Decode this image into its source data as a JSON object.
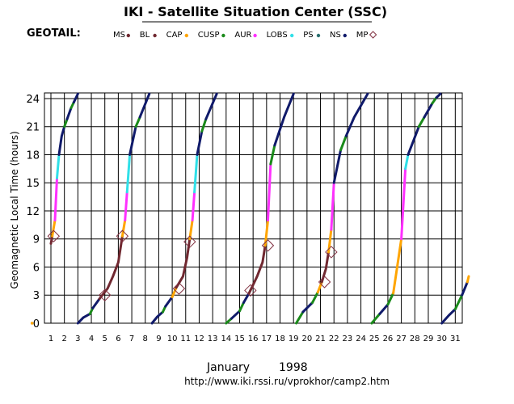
{
  "header": {
    "title": "IKI - Satellite Situation Center (SSC)",
    "spacecraft": "GEOTAIL:"
  },
  "legend": [
    {
      "label": "MS",
      "color": "#702830",
      "symbol": "dot"
    },
    {
      "label": "BL",
      "color": "#702830",
      "symbol": "dot"
    },
    {
      "label": "CAP",
      "color": "#ffa500",
      "symbol": "dot"
    },
    {
      "label": "CUSP",
      "color": "#1a8a1a",
      "symbol": "dot"
    },
    {
      "label": "AUR",
      "color": "#ff30ff",
      "symbol": "dot"
    },
    {
      "label": "LOBS",
      "color": "#30e0e8",
      "symbol": "dot"
    },
    {
      "label": "PS",
      "color": "#2a7070",
      "symbol": "dot"
    },
    {
      "label": "NS",
      "color": "#101a6a",
      "symbol": "dot"
    },
    {
      "label": "MP",
      "color": "#803040",
      "symbol": "diamond"
    }
  ],
  "footer": {
    "month": "January",
    "year": "1998",
    "url": "http://www.iki.rssi.ru/vprokhor/camp2.htm"
  },
  "chart_data": {
    "type": "line",
    "title": "IKI - Satellite Situation Center (SSC)",
    "xlabel": "January 1998",
    "ylabel": "Geomagnetic Local Time (hours)",
    "xlim": [
      1,
      32
    ],
    "ylim": [
      0,
      24.6
    ],
    "xticks": [
      1,
      2,
      3,
      4,
      5,
      6,
      7,
      8,
      9,
      10,
      11,
      12,
      13,
      14,
      15,
      16,
      17,
      18,
      19,
      20,
      21,
      22,
      23,
      24,
      25,
      26,
      27,
      28,
      29,
      30,
      31
    ],
    "yticks": [
      0,
      3,
      6,
      9,
      12,
      15,
      18,
      21,
      24
    ],
    "regions": {
      "MS": "#702830",
      "BL": "#702830",
      "CAP": "#ffa500",
      "CUSP": "#1a8a1a",
      "AUR": "#ff30ff",
      "LOBS": "#30e0e8",
      "PS": "#2a7070",
      "NS": "#101a6a"
    },
    "orbits": [
      {
        "name": "orbit-1",
        "segments": [
          {
            "region": "MS",
            "points": [
              [
                1.0,
                8.5
              ],
              [
                1.1,
                9.3
              ]
            ]
          },
          {
            "region": "CAP",
            "points": [
              [
                1.1,
                9.3
              ],
              [
                1.3,
                11.0
              ]
            ]
          },
          {
            "region": "AUR",
            "points": [
              [
                1.3,
                11.0
              ],
              [
                1.45,
                15.5
              ]
            ]
          },
          {
            "region": "LOBS",
            "points": [
              [
                1.45,
                15.5
              ],
              [
                1.6,
                18.0
              ]
            ]
          },
          {
            "region": "NS",
            "points": [
              [
                1.6,
                18.0
              ],
              [
                1.8,
                20.0
              ],
              [
                2.0,
                21.0
              ]
            ]
          },
          {
            "region": "CUSP",
            "points": [
              [
                2.0,
                21.0
              ],
              [
                2.2,
                21.8
              ]
            ]
          },
          {
            "region": "NS",
            "points": [
              [
                2.2,
                21.8
              ],
              [
                2.5,
                23.0
              ]
            ]
          },
          {
            "region": "CUSP",
            "points": [
              [
                2.5,
                23.0
              ],
              [
                2.7,
                23.6
              ]
            ]
          },
          {
            "region": "NS",
            "points": [
              [
                2.7,
                23.6
              ],
              [
                3.0,
                24.5
              ]
            ]
          }
        ]
      },
      {
        "name": "orbit-2",
        "segments": [
          {
            "region": "NS",
            "points": [
              [
                3.0,
                0.0
              ],
              [
                3.4,
                0.6
              ],
              [
                3.9,
                1.0
              ]
            ]
          },
          {
            "region": "CUSP",
            "points": [
              [
                3.9,
                1.0
              ],
              [
                4.1,
                1.6
              ]
            ]
          },
          {
            "region": "NS",
            "points": [
              [
                4.1,
                1.6
              ],
              [
                4.6,
                2.6
              ]
            ]
          },
          {
            "region": "MS",
            "points": [
              [
                4.6,
                2.6
              ],
              [
                5.2,
                3.7
              ],
              [
                5.6,
                5.0
              ],
              [
                6.0,
                6.5
              ],
              [
                6.3,
                9.3
              ]
            ]
          },
          {
            "region": "CAP",
            "points": [
              [
                6.3,
                9.3
              ],
              [
                6.5,
                11.0
              ]
            ]
          },
          {
            "region": "AUR",
            "points": [
              [
                6.5,
                11.0
              ],
              [
                6.65,
                14.0
              ]
            ]
          },
          {
            "region": "LOBS",
            "points": [
              [
                6.65,
                14.0
              ],
              [
                6.85,
                18.0
              ]
            ]
          },
          {
            "region": "NS",
            "points": [
              [
                6.85,
                18.0
              ],
              [
                7.3,
                21.0
              ]
            ]
          },
          {
            "region": "CUSP",
            "points": [
              [
                7.3,
                21.0
              ],
              [
                7.6,
                22.0
              ]
            ]
          },
          {
            "region": "NS",
            "points": [
              [
                7.6,
                22.0
              ],
              [
                8.3,
                24.5
              ]
            ]
          }
        ]
      },
      {
        "name": "orbit-3",
        "segments": [
          {
            "region": "NS",
            "points": [
              [
                8.5,
                0.0
              ],
              [
                8.9,
                0.7
              ],
              [
                9.3,
                1.2
              ]
            ]
          },
          {
            "region": "CUSP",
            "points": [
              [
                9.3,
                1.2
              ],
              [
                9.5,
                1.8
              ]
            ]
          },
          {
            "region": "NS",
            "points": [
              [
                9.5,
                1.8
              ],
              [
                10.0,
                2.8
              ]
            ]
          },
          {
            "region": "CAP",
            "points": [
              [
                10.0,
                2.8
              ],
              [
                10.3,
                3.8
              ]
            ]
          },
          {
            "region": "MS",
            "points": [
              [
                10.3,
                3.8
              ],
              [
                10.8,
                5.0
              ],
              [
                11.1,
                7.0
              ],
              [
                11.3,
                9.0
              ]
            ]
          },
          {
            "region": "CAP",
            "points": [
              [
                11.3,
                9.0
              ],
              [
                11.5,
                11.0
              ]
            ]
          },
          {
            "region": "AUR",
            "points": [
              [
                11.5,
                11.0
              ],
              [
                11.65,
                14.0
              ]
            ]
          },
          {
            "region": "LOBS",
            "points": [
              [
                11.65,
                14.0
              ],
              [
                11.85,
                18.0
              ]
            ]
          },
          {
            "region": "NS",
            "points": [
              [
                11.85,
                18.0
              ],
              [
                12.2,
                20.5
              ]
            ]
          },
          {
            "region": "CUSP",
            "points": [
              [
                12.2,
                20.5
              ],
              [
                12.5,
                21.8
              ]
            ]
          },
          {
            "region": "NS",
            "points": [
              [
                12.5,
                21.8
              ],
              [
                13.3,
                24.5
              ]
            ]
          }
        ]
      },
      {
        "name": "orbit-4",
        "segments": [
          {
            "region": "CUSP",
            "points": [
              [
                14.0,
                0.0
              ],
              [
                14.4,
                0.5
              ]
            ]
          },
          {
            "region": "NS",
            "points": [
              [
                14.4,
                0.5
              ],
              [
                15.0,
                1.3
              ]
            ]
          },
          {
            "region": "CUSP",
            "points": [
              [
                15.0,
                1.3
              ],
              [
                15.3,
                2.2
              ]
            ]
          },
          {
            "region": "NS",
            "points": [
              [
                15.3,
                2.2
              ],
              [
                15.7,
                3.2
              ]
            ]
          },
          {
            "region": "MS",
            "points": [
              [
                15.7,
                3.2
              ],
              [
                16.3,
                5.0
              ],
              [
                16.7,
                6.5
              ],
              [
                16.9,
                8.3
              ]
            ]
          },
          {
            "region": "CAP",
            "points": [
              [
                16.9,
                8.3
              ],
              [
                17.1,
                11.0
              ]
            ]
          },
          {
            "region": "AUR",
            "points": [
              [
                17.1,
                11.0
              ],
              [
                17.3,
                17.0
              ]
            ]
          },
          {
            "region": "CUSP",
            "points": [
              [
                17.3,
                17.0
              ],
              [
                17.6,
                19.0
              ]
            ]
          },
          {
            "region": "NS",
            "points": [
              [
                17.6,
                19.0
              ],
              [
                18.3,
                22.0
              ],
              [
                19.0,
                24.5
              ]
            ]
          }
        ]
      },
      {
        "name": "orbit-5",
        "segments": [
          {
            "region": "CUSP",
            "points": [
              [
                19.2,
                0.0
              ],
              [
                19.7,
                1.2
              ]
            ]
          },
          {
            "region": "NS",
            "points": [
              [
                19.7,
                1.2
              ],
              [
                20.4,
                2.2
              ]
            ]
          },
          {
            "region": "CUSP",
            "points": [
              [
                20.4,
                2.2
              ],
              [
                20.8,
                3.3
              ]
            ]
          },
          {
            "region": "CAP",
            "points": [
              [
                20.8,
                3.3
              ],
              [
                21.1,
                4.4
              ]
            ]
          },
          {
            "region": "MS",
            "points": [
              [
                21.1,
                4.4
              ],
              [
                21.4,
                5.8
              ],
              [
                21.6,
                7.6
              ]
            ]
          },
          {
            "region": "CAP",
            "points": [
              [
                21.6,
                7.6
              ],
              [
                21.8,
                10.0
              ]
            ]
          },
          {
            "region": "AUR",
            "points": [
              [
                21.8,
                10.0
              ],
              [
                22.0,
                15.0
              ]
            ]
          },
          {
            "region": "NS",
            "points": [
              [
                22.0,
                15.0
              ],
              [
                22.5,
                18.5
              ]
            ]
          },
          {
            "region": "CUSP",
            "points": [
              [
                22.5,
                18.5
              ],
              [
                22.9,
                20.0
              ]
            ]
          },
          {
            "region": "NS",
            "points": [
              [
                22.9,
                20.0
              ],
              [
                23.5,
                22.0
              ],
              [
                24.5,
                24.5
              ]
            ]
          }
        ]
      },
      {
        "name": "orbit-6",
        "segments": [
          {
            "region": "CUSP",
            "points": [
              [
                24.8,
                0.0
              ],
              [
                25.4,
                1.0
              ]
            ]
          },
          {
            "region": "NS",
            "points": [
              [
                25.4,
                1.0
              ],
              [
                26.0,
                2.0
              ]
            ]
          },
          {
            "region": "CUSP",
            "points": [
              [
                26.0,
                2.0
              ],
              [
                26.4,
                3.2
              ]
            ]
          },
          {
            "region": "CAP",
            "points": [
              [
                26.4,
                3.2
              ],
              [
                27.0,
                9.0
              ]
            ]
          },
          {
            "region": "AUR",
            "points": [
              [
                27.0,
                9.0
              ],
              [
                27.3,
                16.5
              ]
            ]
          },
          {
            "region": "LOBS",
            "points": [
              [
                27.3,
                16.5
              ],
              [
                27.5,
                18.0
              ]
            ]
          },
          {
            "region": "NS",
            "points": [
              [
                27.5,
                18.0
              ],
              [
                28.3,
                21.0
              ]
            ]
          },
          {
            "region": "CUSP",
            "points": [
              [
                28.3,
                21.0
              ],
              [
                28.7,
                22.0
              ]
            ]
          },
          {
            "region": "NS",
            "points": [
              [
                28.7,
                22.0
              ],
              [
                29.3,
                23.5
              ]
            ]
          },
          {
            "region": "CUSP",
            "points": [
              [
                29.3,
                23.5
              ],
              [
                29.6,
                24.1
              ]
            ]
          },
          {
            "region": "NS",
            "points": [
              [
                29.6,
                24.1
              ],
              [
                29.9,
                24.5
              ]
            ]
          }
        ]
      },
      {
        "name": "orbit-7",
        "segments": [
          {
            "region": "NS",
            "points": [
              [
                30.0,
                0.0
              ],
              [
                30.5,
                0.8
              ],
              [
                31.0,
                1.5
              ]
            ]
          },
          {
            "region": "CUSP",
            "points": [
              [
                31.0,
                1.5
              ],
              [
                31.5,
                3.0
              ]
            ]
          },
          {
            "region": "NS",
            "points": [
              [
                31.5,
                3.0
              ],
              [
                31.9,
                4.4
              ]
            ]
          },
          {
            "region": "CAP",
            "points": [
              [
                31.9,
                4.4
              ],
              [
                32.0,
                5.0
              ]
            ]
          }
        ]
      }
    ],
    "extra_points": [
      {
        "region": "CAP",
        "x": 0.2,
        "y": 0.0
      }
    ],
    "magnetopause_crossings": [
      {
        "x": 1.2,
        "y": 9.3
      },
      {
        "x": 5.0,
        "y": 3.0
      },
      {
        "x": 6.3,
        "y": 9.3
      },
      {
        "x": 10.5,
        "y": 3.7
      },
      {
        "x": 11.3,
        "y": 8.7
      },
      {
        "x": 15.8,
        "y": 3.5
      },
      {
        "x": 17.1,
        "y": 8.3
      },
      {
        "x": 21.3,
        "y": 4.4
      },
      {
        "x": 21.8,
        "y": 7.6
      }
    ]
  }
}
